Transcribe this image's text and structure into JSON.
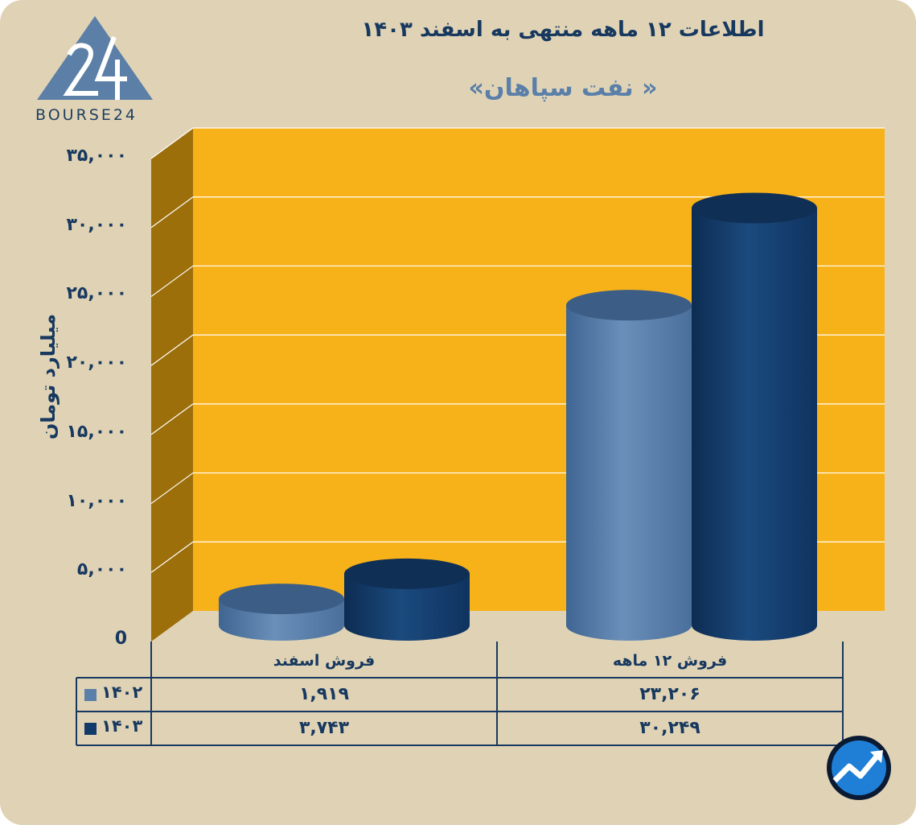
{
  "logo": {
    "text": "BOURSE24",
    "glyph": "24"
  },
  "chart_data": {
    "type": "bar",
    "title": "اطلاعات ۱۲ ماهه منتهی به اسفند ۱۴۰۳",
    "subtitle": "« نفت سپاهان»",
    "ylabel": "میلیارد تومان",
    "xlabel": "",
    "ylim": [
      0,
      35000
    ],
    "yticks": [
      0,
      5000,
      10000,
      15000,
      20000,
      25000,
      30000,
      35000
    ],
    "ytick_labels": [
      "0",
      "۵,۰۰۰",
      "۱۰,۰۰۰",
      "۱۵,۰۰۰",
      "۲۰,۰۰۰",
      "۲۵,۰۰۰",
      "۳۰,۰۰۰",
      "۳۵,۰۰۰"
    ],
    "categories": [
      "فروش اسفند",
      "فروش ۱۲ ماهه"
    ],
    "series": [
      {
        "name": "۱۴۰۲",
        "values": [
          1919,
          23206
        ],
        "labels": [
          "۱,۹۱۹",
          "۲۳,۲۰۶"
        ],
        "color": "#5a7fa9"
      },
      {
        "name": "۱۴۰۳",
        "values": [
          3743,
          30249
        ],
        "labels": [
          "۳,۷۴۳",
          "۳۰,۲۴۹"
        ],
        "color": "#133b69"
      }
    ],
    "grid": true,
    "legend": "table-left",
    "wall_color": "#f8b219",
    "side_wall_color": "#9c6f0b"
  },
  "badge": {
    "icon": "trend-up-icon"
  }
}
